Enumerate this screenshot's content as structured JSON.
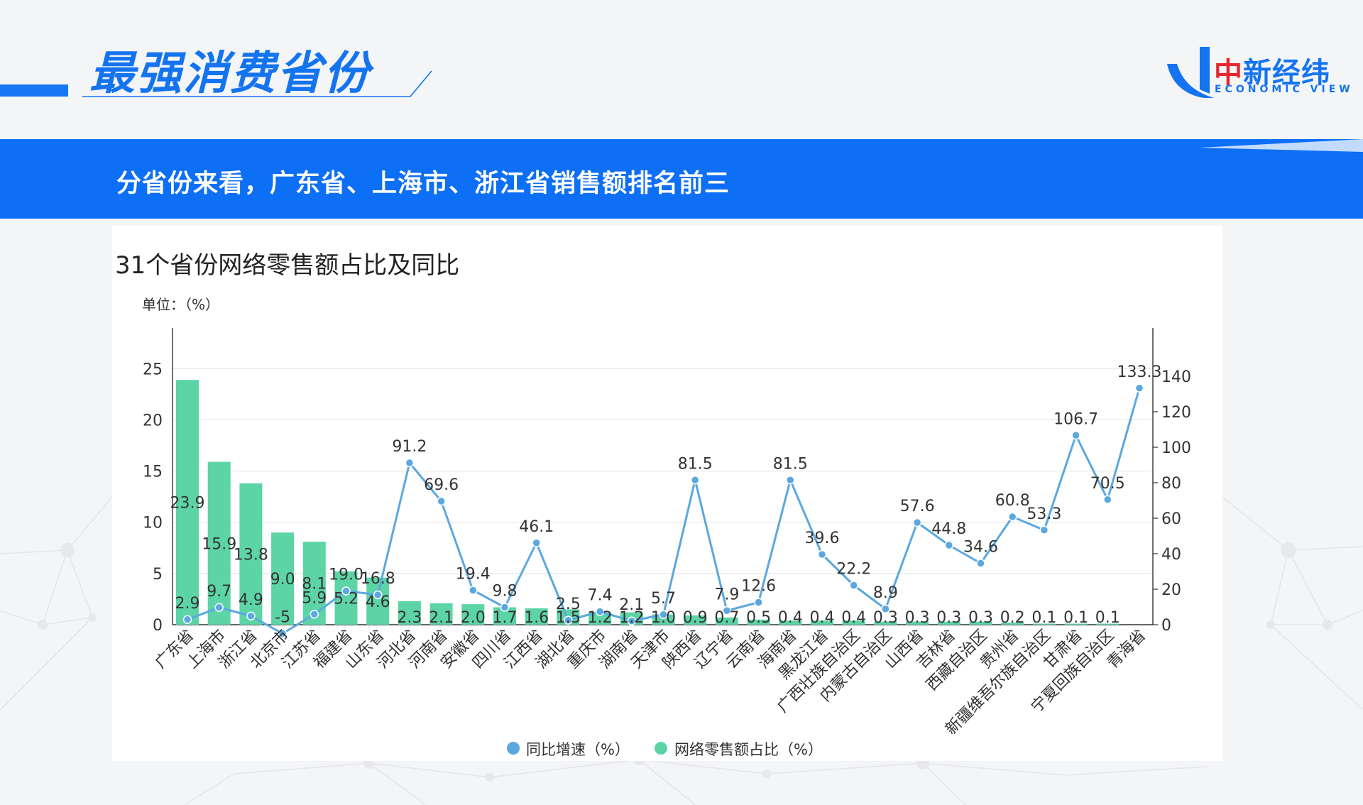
{
  "header": {
    "title": "最强消费省份",
    "logo_cn_red": "中",
    "logo_cn_blue": "新经纬",
    "logo_en": "ECONOMIC VIEW"
  },
  "banner": {
    "text": "分省份来看，广东省、上海市、浙江省销售额排名前三"
  },
  "colors": {
    "accent": "#1474f0",
    "banner": "#0d6ff5",
    "bar": "#5dd4a6",
    "line": "#5ba8e0"
  },
  "chart_data": {
    "type": "bar",
    "title": "31个省份网络零售额占比及同比",
    "unit": "单位：（%）",
    "categories": [
      "广东省",
      "上海市",
      "浙江省",
      "北京市",
      "江苏省",
      "福建省",
      "山东省",
      "河北省",
      "河南省",
      "安徽省",
      "四川省",
      "江西省",
      "湖北省",
      "重庆市",
      "湖南省",
      "天津市",
      "陕西省",
      "辽宁省",
      "云南省",
      "海南省",
      "黑龙江省",
      "广西壮族自治区",
      "内蒙古自治区",
      "山西省",
      "吉林省",
      "西藏自治区",
      "贵州省",
      "新疆维吾尔族自治区",
      "甘肃省",
      "宁夏回族自治区",
      "青海省"
    ],
    "series": [
      {
        "name": "网络零售额占比（%）",
        "type": "bar",
        "axis": "left",
        "values": [
          23.9,
          15.9,
          13.8,
          9.0,
          8.1,
          5.2,
          4.6,
          2.3,
          2.1,
          2.0,
          1.7,
          1.6,
          1.5,
          1.2,
          1.2,
          1.0,
          0.9,
          0.7,
          0.5,
          0.4,
          0.4,
          0.4,
          0.3,
          0.3,
          0.3,
          0.3,
          0.2,
          0.1,
          0.1,
          0.1,
          null
        ],
        "labels": [
          "23.9",
          "15.9",
          "13.8",
          "9.0",
          "8.1",
          "5.2",
          "4.6",
          "2.3",
          "2.1",
          "2.0",
          "1.7",
          "1.6",
          "1.5",
          "1.2",
          "1.2",
          "1.0",
          "0.9",
          "0.7",
          "0.5",
          "0.4",
          "0.4",
          "0.4",
          "0.3",
          "0.3",
          "0.3",
          "0.3",
          "0.2",
          "0.1",
          "0.1",
          "0.1",
          ""
        ]
      },
      {
        "name": "同比增速（%）",
        "type": "line",
        "axis": "right",
        "values": [
          2.9,
          9.7,
          4.9,
          -5,
          5.9,
          19.0,
          16.8,
          91.2,
          69.6,
          19.4,
          9.8,
          46.1,
          2.5,
          7.4,
          2.1,
          5.7,
          81.5,
          7.9,
          12.6,
          81.5,
          39.6,
          22.2,
          8.9,
          57.6,
          44.8,
          34.6,
          60.8,
          53.3,
          106.7,
          70.5,
          133.3
        ],
        "labels": [
          "2.9",
          "9.7",
          "4.9",
          "-5",
          "5.9",
          "19.0",
          "16.8",
          "91.2",
          "69.6",
          "19.4",
          "9.8",
          "46.1",
          "2.5",
          "7.4",
          "2.1",
          "5.7",
          "81.5",
          "7.9",
          "12.6",
          "81.5",
          "39.6",
          "22.2",
          "8.9",
          "57.6",
          "44.8",
          "34.6",
          "60.8",
          "53.3",
          "106.7",
          "70.5",
          "133.3"
        ]
      }
    ],
    "left_axis": {
      "ylim": [
        0,
        25
      ],
      "ticks": [
        "0",
        "5",
        "10",
        "15",
        "20",
        "25"
      ]
    },
    "right_axis": {
      "ylim": [
        0,
        140
      ],
      "ticks": [
        "0",
        "20",
        "40",
        "60",
        "80",
        "100",
        "120",
        "140"
      ]
    },
    "grid": true,
    "legend": [
      "同比增速（%）",
      "网络零售额占比（%）"
    ],
    "legend_position": "bottom"
  }
}
